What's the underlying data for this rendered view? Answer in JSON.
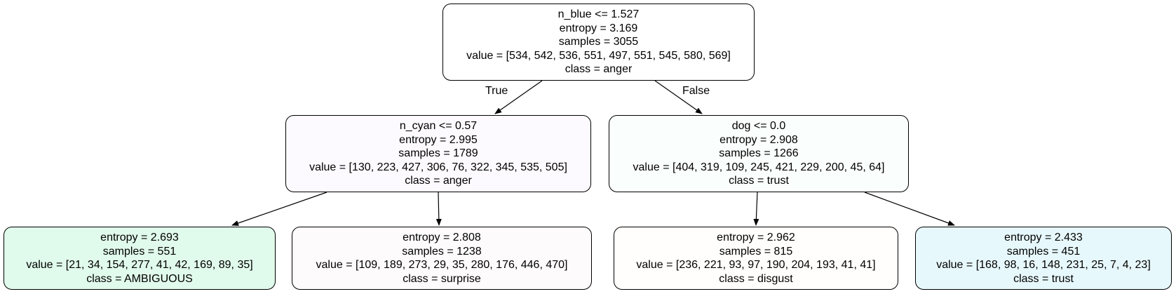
{
  "tree": {
    "nodes": [
      {
        "id": "root",
        "split": "n_blue <= 1.527",
        "entropy": "entropy = 3.169",
        "samples": "samples = 3055",
        "value": "value = [534, 542, 536, 551, 497, 551, 545, 580, 569]",
        "class": "class = anger",
        "fill": "#ffffff"
      },
      {
        "id": "left",
        "split": "n_cyan <= 0.57",
        "entropy": "entropy = 2.995",
        "samples": "samples = 1789",
        "value": "value = [130, 223, 427, 306, 76, 322, 345, 535, 505]",
        "class": "class = anger",
        "fill": "#fcfafe"
      },
      {
        "id": "right",
        "split": "dog <= 0.0",
        "entropy": "entropy = 2.908",
        "samples": "samples = 1266",
        "value": "value = [404, 319, 109, 245, 421, 229, 200, 45, 64]",
        "class": "class = trust",
        "fill": "#fafefc"
      },
      {
        "id": "left-left",
        "entropy": "entropy = 2.693",
        "samples": "samples = 551",
        "value": "value = [21, 34, 154, 277, 41, 42, 169, 89, 35]",
        "class": "class = AMBIGUOUS",
        "fill": "#e0faeb"
      },
      {
        "id": "left-right",
        "entropy": "entropy = 2.808",
        "samples": "samples = 1238",
        "value": "value = [109, 189, 273, 29, 35, 280, 176, 446, 470]",
        "class": "class = surprise",
        "fill": "#fdfbfc"
      },
      {
        "id": "right-left",
        "entropy": "entropy = 2.962",
        "samples": "samples = 815",
        "value": "value = [236, 221, 93, 97, 190, 204, 193, 41, 41]",
        "class": "class = disgust",
        "fill": "#fffefc"
      },
      {
        "id": "right-right",
        "entropy": "entropy = 2.433",
        "samples": "samples = 451",
        "value": "value = [168, 98, 16, 148, 231, 25, 7, 4, 23]",
        "class": "class = trust",
        "fill": "#e7f8fc"
      }
    ],
    "edge_labels": {
      "true": "True",
      "false": "False"
    },
    "edge_color": "#000000"
  }
}
